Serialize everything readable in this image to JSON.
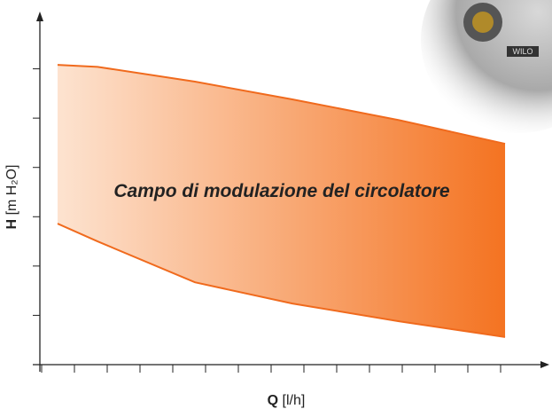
{
  "chart_data": {
    "type": "range",
    "annotation": "Campo di modulazione del circolatore",
    "xlabel_symbol": "Q",
    "xlabel_unit": "[l/h]",
    "ylabel_symbol": "H",
    "ylabel_unit": "[m H₂O]",
    "x": [
      0.54,
      1.76,
      4.73,
      7.7,
      10.95,
      14.19
    ],
    "high": [
      6.08,
      6.04,
      5.74,
      5.38,
      4.96,
      4.48
    ],
    "low": [
      2.86,
      2.5,
      1.67,
      1.24,
      0.88,
      0.56
    ],
    "color_start": "#fde3d0",
    "color_end": "#f47321",
    "edge_color": "#f06a1d",
    "xlim": [
      0,
      16
    ],
    "ylim": [
      0,
      7
    ],
    "xticks": [
      0,
      1,
      2,
      3,
      4,
      5,
      6,
      7,
      8,
      9,
      10,
      11,
      12,
      13,
      14
    ],
    "yticks": [
      1,
      2,
      3,
      4,
      5,
      6
    ]
  }
}
